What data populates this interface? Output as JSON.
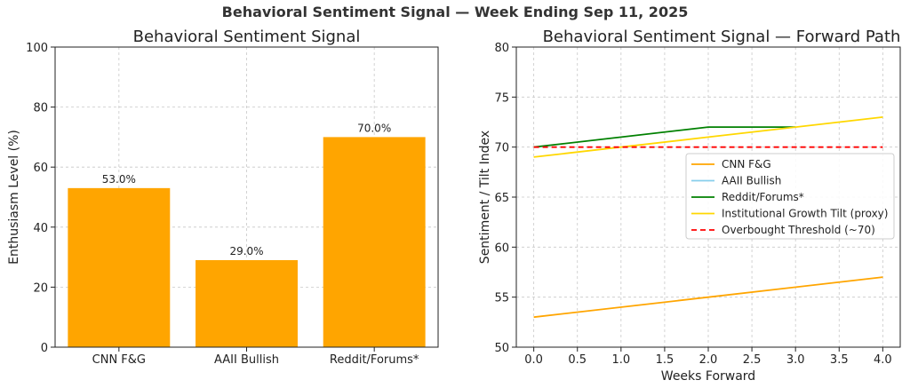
{
  "suptitle": "Behavioral Sentiment Signal — Week Ending Sep 11, 2025",
  "colors": {
    "bar": "#FFA500",
    "cnn": "#FFA500",
    "aaii": "#87CEEB",
    "reddit": "#008000",
    "institutional": "#FFD700",
    "threshold": "#FF0000",
    "grid": "#c8c8c8"
  },
  "chart_data": [
    {
      "type": "bar",
      "title": "Behavioral Sentiment Signal",
      "xlabel": "",
      "ylabel": "Enthusiasm Level (%)",
      "categories": [
        "CNN F&G",
        "AAII Bullish",
        "Reddit/Forums*"
      ],
      "values": [
        53.0,
        29.0,
        70.0
      ],
      "value_labels": [
        "53.0%",
        "29.0%",
        "70.0%"
      ],
      "ylim": [
        0,
        100
      ],
      "yticks": [
        0,
        20,
        40,
        60,
        80,
        100
      ],
      "grid": true
    },
    {
      "type": "line",
      "title": "Behavioral Sentiment Signal — Forward Path",
      "xlabel": "Weeks Forward",
      "ylabel": "Sentiment / Tilt Index",
      "xlim": [
        0,
        4
      ],
      "ylim": [
        50,
        80
      ],
      "xticks": [
        0,
        0.5,
        1,
        1.5,
        2,
        2.5,
        3,
        3.5,
        4
      ],
      "xtick_labels": [
        "0.0",
        "0.5",
        "1.0",
        "1.5",
        "2.0",
        "2.5",
        "3.0",
        "3.5",
        "4.0"
      ],
      "yticks": [
        50,
        55,
        60,
        65,
        70,
        75,
        80
      ],
      "grid": true,
      "legend_position": "center-right",
      "series": [
        {
          "name": "CNN F&G",
          "color_key": "cnn",
          "dashed": false,
          "x": [
            0,
            2,
            4
          ],
          "values": [
            53,
            55,
            57
          ]
        },
        {
          "name": "AAII Bullish",
          "color_key": "aaii",
          "dashed": false,
          "x": [],
          "values": []
        },
        {
          "name": "Reddit/Forums*",
          "color_key": "reddit",
          "dashed": false,
          "x": [
            0,
            2,
            3
          ],
          "values": [
            70,
            72,
            72
          ]
        },
        {
          "name": "Institutional Growth Tilt (proxy)",
          "color_key": "institutional",
          "dashed": false,
          "x": [
            0,
            2,
            4
          ],
          "values": [
            69,
            71,
            73
          ]
        },
        {
          "name": "Overbought Threshold (~70)",
          "color_key": "threshold",
          "dashed": true,
          "x": [
            0,
            4
          ],
          "values": [
            70,
            70
          ]
        }
      ]
    }
  ]
}
